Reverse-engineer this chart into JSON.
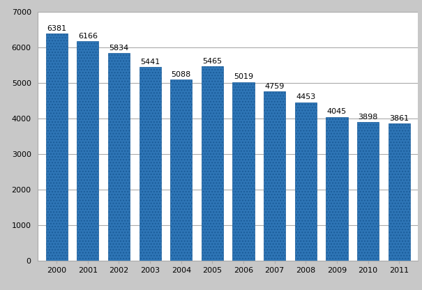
{
  "years": [
    "2000",
    "2001",
    "2002",
    "2003",
    "2004",
    "2005",
    "2006",
    "2007",
    "2008",
    "2009",
    "2010",
    "2011"
  ],
  "values": [
    6381,
    6166,
    5834,
    5441,
    5088,
    5465,
    5019,
    4759,
    4453,
    4045,
    3898,
    3861
  ],
  "bar_color": "#2E75B6",
  "bar_dot_color": "#5BA3D9",
  "ylim": [
    0,
    7000
  ],
  "yticks": [
    0,
    1000,
    2000,
    3000,
    4000,
    5000,
    6000,
    7000
  ],
  "background_color": "#ffffff",
  "plot_bg_color": "#ffffff",
  "grid_color": "#aaaaaa",
  "tick_fontsize": 8,
  "value_fontsize": 8,
  "bar_edge_color": "#1a5c99",
  "outer_bg": "#c8c8c8"
}
